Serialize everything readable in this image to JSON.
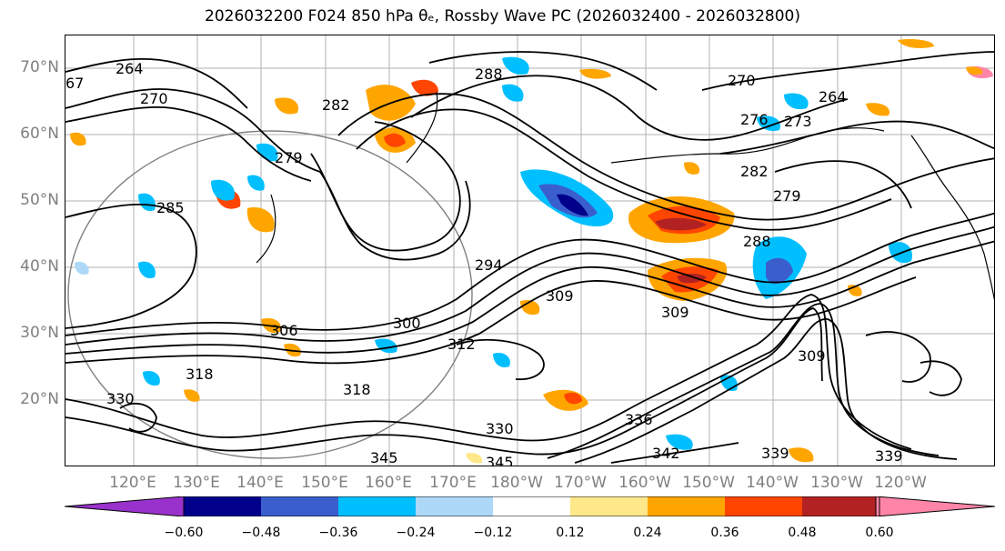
{
  "title": "2026032200 F024 850 hPa θₑ, Rossby Wave PC (2026032400 - 2026032800)",
  "map": {
    "lat_labels": [
      "70°N",
      "60°N",
      "50°N",
      "40°N",
      "30°N",
      "20°N"
    ],
    "lon_labels": [
      "120°E",
      "130°E",
      "140°E",
      "150°E",
      "160°E",
      "170°E",
      "180°W",
      "170°W",
      "160°W",
      "150°W",
      "140°W",
      "130°W",
      "120°W"
    ],
    "contour_labels": [
      "264",
      "270",
      "282",
      "288",
      "270",
      "264",
      "273",
      "276",
      "279",
      "282",
      "279",
      "285",
      "288",
      "294",
      "300",
      "309",
      "309",
      "312",
      "318",
      "318",
      "330",
      "330",
      "336",
      "339",
      "339",
      "342",
      "345",
      "345",
      "309",
      "306",
      "67"
    ],
    "coastline_color": "#000000",
    "graticule_color": "#b0b0b0"
  },
  "colorbar": {
    "tick_labels": [
      "−0.60",
      "−0.48",
      "−0.36",
      "−0.24",
      "−0.12",
      "0.12",
      "0.24",
      "0.36",
      "0.48",
      "0.60"
    ],
    "colors": [
      "#9932cc",
      "#00008b",
      "#3a5fcd",
      "#00bfff",
      "#add8f7",
      "#ffffff",
      "#ffe88a",
      "#ffa500",
      "#ff4500",
      "#b22222",
      "#ff85a8"
    ]
  }
}
